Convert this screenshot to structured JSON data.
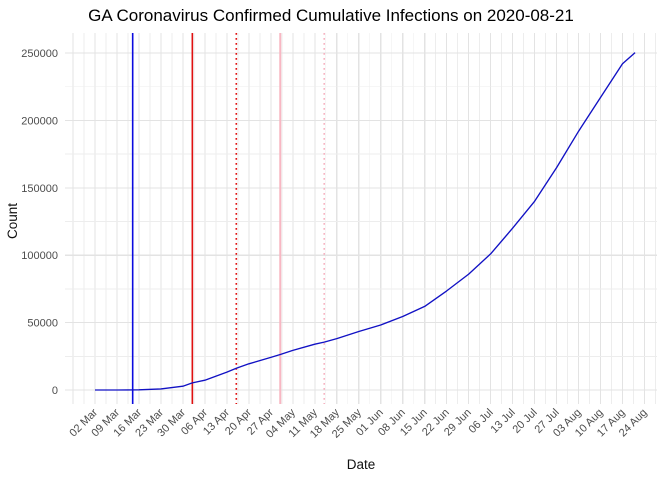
{
  "chart_data": {
    "type": "line",
    "title": "GA Coronavirus Confirmed Cumulative Infections on 2020-08-21",
    "xlabel": "Date",
    "ylabel": "Count",
    "legend": "none",
    "grid": "on",
    "background_color": "#ffffff",
    "grid_major_color": "#e3e3e3",
    "grid_minor_color": "#ededed",
    "tick_label_color": "#4d4d4d",
    "ylim": [
      0,
      250000
    ],
    "y_ticks": [
      0,
      50000,
      100000,
      150000,
      200000,
      250000
    ],
    "y_tick_labels": [
      "0",
      "50000",
      "100000",
      "150000",
      "200000",
      "250000"
    ],
    "y_minor_step": 25000,
    "x_tick_dates": [
      "2020-03-02",
      "2020-03-09",
      "2020-03-16",
      "2020-03-23",
      "2020-03-30",
      "2020-04-06",
      "2020-04-13",
      "2020-04-20",
      "2020-04-27",
      "2020-05-04",
      "2020-05-11",
      "2020-05-18",
      "2020-05-25",
      "2020-06-01",
      "2020-06-08",
      "2020-06-15",
      "2020-06-22",
      "2020-06-29",
      "2020-07-06",
      "2020-07-13",
      "2020-07-20",
      "2020-07-27",
      "2020-08-03",
      "2020-08-10",
      "2020-08-17",
      "2020-08-24"
    ],
    "x_tick_labels": [
      "02 Mar",
      "09 Mar",
      "16 Mar",
      "23 Mar",
      "30 Mar",
      "06 Apr",
      "13 Apr",
      "20 Apr",
      "27 Apr",
      "04 May",
      "11 May",
      "18 May",
      "25 May",
      "01 Jun",
      "08 Jun",
      "15 Jun",
      "22 Jun",
      "29 Jun",
      "06 Jul",
      "13 Jul",
      "20 Jul",
      "27 Jul",
      "03 Aug",
      "10 Aug",
      "17 Aug",
      "24 Aug"
    ],
    "series": [
      {
        "name": "cumulative-confirmed-infections",
        "color": "#1111c4",
        "x": [
          "2020-03-02",
          "2020-03-09",
          "2020-03-16",
          "2020-03-23",
          "2020-03-30",
          "2020-04-02",
          "2020-04-06",
          "2020-04-13",
          "2020-04-16",
          "2020-04-20",
          "2020-04-27",
          "2020-04-30",
          "2020-05-04",
          "2020-05-11",
          "2020-05-14",
          "2020-05-18",
          "2020-05-25",
          "2020-06-01",
          "2020-06-08",
          "2020-06-15",
          "2020-06-22",
          "2020-06-29",
          "2020-07-06",
          "2020-07-13",
          "2020-07-20",
          "2020-07-27",
          "2020-08-03",
          "2020-08-10",
          "2020-08-17",
          "2020-08-21"
        ],
        "y": [
          2,
          20,
          120,
          800,
          2800,
          5300,
          7300,
          13300,
          16100,
          19400,
          24200,
          26300,
          29400,
          34000,
          35500,
          38100,
          43400,
          48200,
          54500,
          62000,
          73500,
          86000,
          101000,
          120000,
          140000,
          165000,
          192000,
          217000,
          242000,
          250300
        ]
      }
    ],
    "vlines": [
      {
        "name": "vline-blue-solid",
        "date": "2020-03-14",
        "color": "#0b0bdf",
        "style": "solid",
        "width": 1.6
      },
      {
        "name": "vline-red-solid",
        "date": "2020-04-02",
        "color": "#e01010",
        "style": "solid",
        "width": 1.6
      },
      {
        "name": "vline-red-dotted",
        "date": "2020-04-16",
        "color": "#e01010",
        "style": "dotted",
        "width": 1.6
      },
      {
        "name": "vline-pink-solid",
        "date": "2020-04-30",
        "color": "#f8b7c3",
        "style": "solid",
        "width": 2.0
      },
      {
        "name": "vline-pink-dotted",
        "date": "2020-05-14",
        "color": "#f6b3c1",
        "style": "dotted",
        "width": 1.6
      }
    ]
  }
}
